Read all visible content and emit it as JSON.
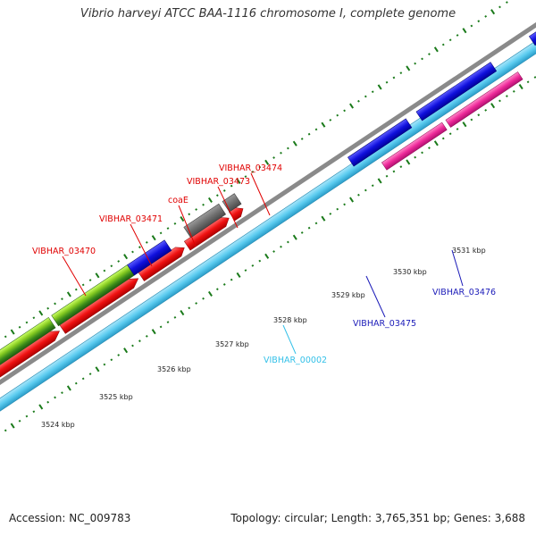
{
  "title": "Vibrio harveyi ATCC BAA-1116 chromosome I, complete genome",
  "footer": {
    "accession": "Accession: NC_009783",
    "summary": "Topology: circular; Length: 3,765,351 bp; Genes: 3,688"
  },
  "colors": {
    "forward_label": "#e00000",
    "reverse_label": "#1a1ab8",
    "rna_label": "#33c0e8",
    "tick": "#1a7a1a",
    "backbone": "#888888",
    "ring": "#5cccf0"
  },
  "scale_ticks": [
    "3524 kbp",
    "3525 kbp",
    "3526 kbp",
    "3527 kbp",
    "3528 kbp",
    "3529 kbp",
    "3530 kbp",
    "3531 kbp"
  ],
  "gene_labels": [
    {
      "id": "VIBHAR_03470",
      "strand": "forward"
    },
    {
      "id": "VIBHAR_03471",
      "strand": "forward"
    },
    {
      "id": "coaE",
      "strand": "forward"
    },
    {
      "id": "VIBHAR_03473",
      "strand": "forward"
    },
    {
      "id": "VIBHAR_03474",
      "strand": "forward"
    },
    {
      "id": "VIBHAR_00002",
      "strand": "rna"
    },
    {
      "id": "VIBHAR_03475",
      "strand": "reverse"
    },
    {
      "id": "VIBHAR_03476",
      "strand": "reverse"
    }
  ]
}
